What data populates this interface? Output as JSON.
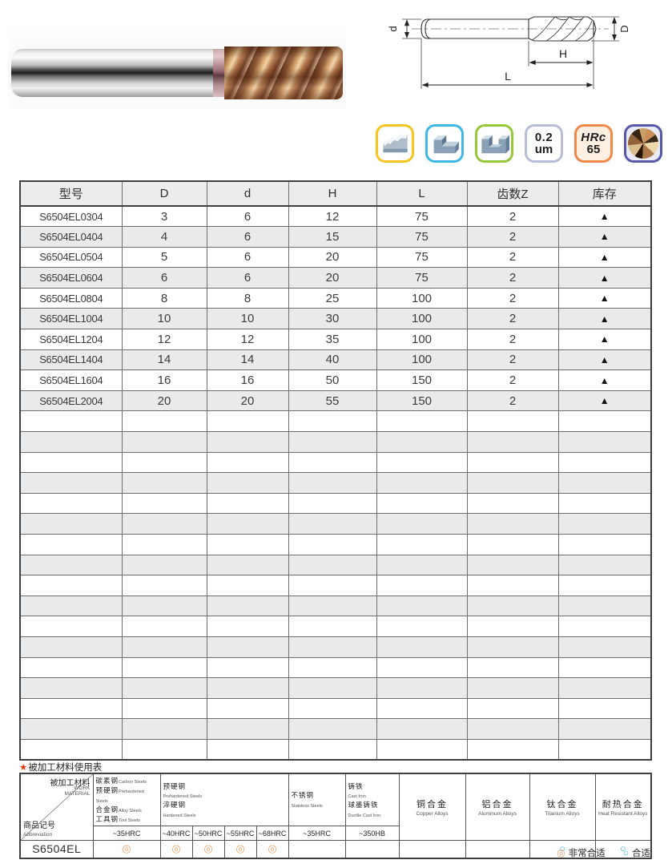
{
  "diagram": {
    "labels": {
      "d": "d",
      "D": "D",
      "H": "H",
      "L": "L"
    }
  },
  "icons": {
    "surface_finish": {
      "line1": "0.2",
      "line2": "um"
    },
    "hardness": {
      "line1": "HRc",
      "line2": "65"
    }
  },
  "main_table": {
    "headers": [
      "型号",
      "D",
      "d",
      "H",
      "L",
      "齿数Z",
      "库存"
    ],
    "rows": [
      [
        "S6504EL0304",
        "3",
        "6",
        "12",
        "75",
        "2",
        "▲"
      ],
      [
        "S6504EL0404",
        "4",
        "6",
        "15",
        "75",
        "2",
        "▲"
      ],
      [
        "S6504EL0504",
        "5",
        "6",
        "20",
        "75",
        "2",
        "▲"
      ],
      [
        "S6504EL0604",
        "6",
        "6",
        "20",
        "75",
        "2",
        "▲"
      ],
      [
        "S6504EL0804",
        "8",
        "8",
        "25",
        "100",
        "2",
        "▲"
      ],
      [
        "S6504EL1004",
        "10",
        "10",
        "30",
        "100",
        "2",
        "▲"
      ],
      [
        "S6504EL1204",
        "12",
        "12",
        "35",
        "100",
        "2",
        "▲"
      ],
      [
        "S6504EL1404",
        "14",
        "14",
        "40",
        "100",
        "2",
        "▲"
      ],
      [
        "S6504EL1604",
        "16",
        "16",
        "50",
        "150",
        "2",
        "▲"
      ],
      [
        "S6504EL2004",
        "20",
        "20",
        "55",
        "150",
        "2",
        "▲"
      ]
    ],
    "empty_rows": 17
  },
  "usage_note": {
    "star": "★",
    "text": "被加工材料使用表"
  },
  "material_table": {
    "corner": {
      "cn_top": "被加工材料",
      "en_top": "WORK\nMATERIAL",
      "cn_bottom": "商品记号",
      "en_bottom": "Abbreviation"
    },
    "steel_group": {
      "lines": [
        {
          "cn": "碳素钢",
          "en": "Carbon Steels"
        },
        {
          "cn": "预硬钢",
          "en": "Prehardened Steels"
        },
        {
          "cn": "合金钢",
          "en": "Alloy Steels"
        },
        {
          "cn": "工具钢",
          "en": "Tool Steels"
        }
      ]
    },
    "hardened_group": {
      "cn1": "预硬钢",
      "en1": "Prehardened Steels",
      "cn2": "淬硬钢",
      "en2": "Hardened Steels"
    },
    "stainless": {
      "cn": "不锈钢",
      "en": "Stainless Steels"
    },
    "cast_iron": {
      "cn1": "铸铁",
      "en1": "Cast Iron",
      "cn2": "球墨铸铁",
      "en2": "Ductile Cast Iron"
    },
    "alloys": [
      {
        "cn": "铜合金",
        "en": "Copper Alloys"
      },
      {
        "cn": "铝合金",
        "en": "Aluminum Alloys"
      },
      {
        "cn": "钛合金",
        "en": "Titanium Alloys"
      },
      {
        "cn": "耐热合金",
        "en": "Heat Resistant Alloys"
      }
    ],
    "hardness_cells": [
      "~35HRC",
      "~40HRC",
      "~50HRC",
      "~55HRC",
      "~68HRC",
      "~35HRC",
      "~350HB"
    ],
    "row_label": "S6504EL",
    "marks": [
      {
        "symbol": "◎",
        "level": "excellent"
      },
      {
        "symbol": "◎",
        "level": "excellent"
      },
      {
        "symbol": "◎",
        "level": "excellent"
      },
      {
        "symbol": "◎",
        "level": "excellent"
      },
      {
        "symbol": "◎",
        "level": "excellent"
      },
      {
        "symbol": "",
        "level": "none"
      },
      {
        "symbol": "",
        "level": "none"
      },
      {
        "symbol": "",
        "level": "none"
      },
      {
        "symbol": "",
        "level": "none"
      },
      {
        "symbol": "○",
        "level": "suitable"
      },
      {
        "symbol": "○",
        "level": "suitable"
      }
    ]
  },
  "legend": {
    "excellent_symbol": "◎",
    "excellent_label": "非常合适",
    "suitable_symbol": "○",
    "suitable_label": "合适"
  },
  "colors": {
    "excellent_mark": "#f0a16b",
    "suitable_mark": "#35b5e5",
    "stock_triangle": "#141414",
    "note_star": "#e8380d",
    "row_alt": "#e8eaeb",
    "header_bg": "#ececec",
    "icon_borders": {
      "profile": "#f6c51f",
      "shoulder": "#3db7e4",
      "slot": "#96c83c",
      "finish": "#b8bcd8",
      "hardness": "#f08848",
      "tip": "#5858a8"
    }
  }
}
